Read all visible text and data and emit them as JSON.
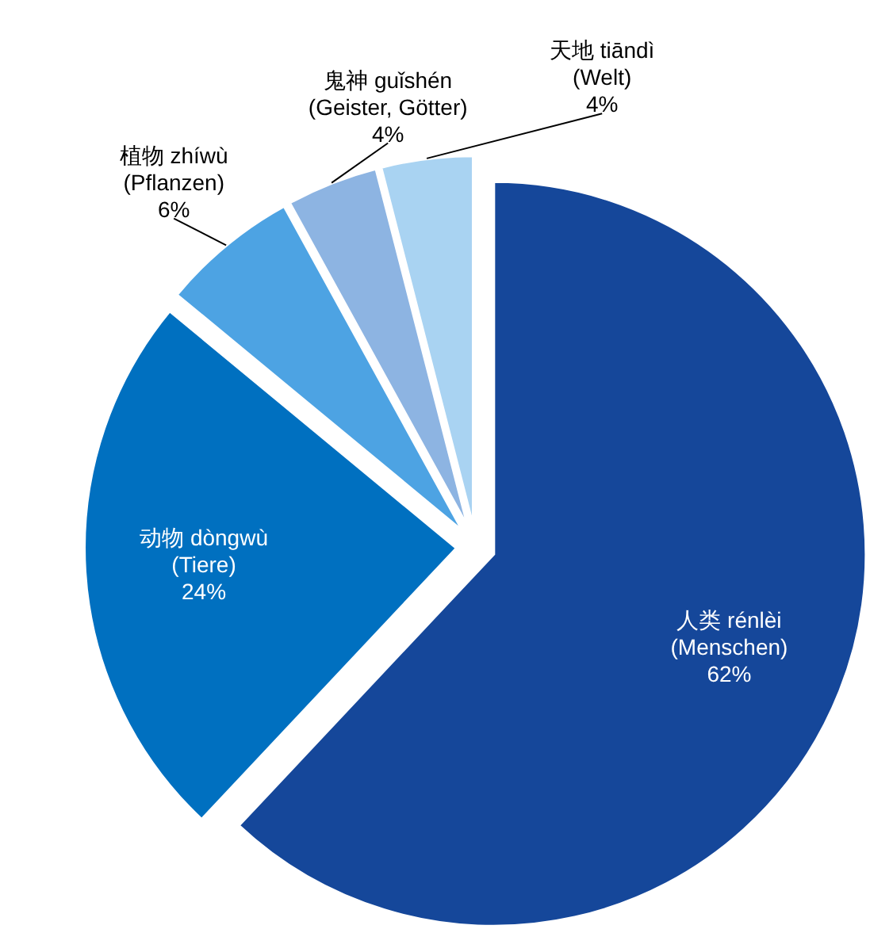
{
  "chart_data": {
    "type": "pie",
    "categories": [
      "人类 rénlèi\n(Menschen)",
      "动物 dòngwù\n(Tiere)",
      "植物 zhíwù\n(Pflanzen)",
      "鬼神 guǐshén\n(Geister, Götter)",
      "天地 tiāndì\n(Welt)"
    ],
    "values": [
      62,
      24,
      6,
      4,
      4
    ],
    "colors": [
      "#15479a",
      "#0070c0",
      "#4da3e3",
      "#8db4e2",
      "#a9d3f2"
    ],
    "value_labels": [
      "62%",
      "24%",
      "6%",
      "4%",
      "4%"
    ]
  }
}
